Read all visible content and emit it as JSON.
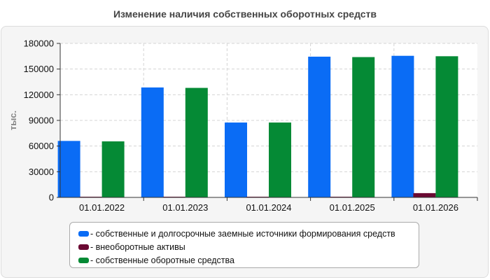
{
  "chart_data": {
    "type": "bar",
    "title": "Изменение наличия собственных оборотных средств",
    "ylabel": "тыс.",
    "xlabel": "",
    "categories": [
      "01.01.2022",
      "01.01.2023",
      "01.01.2024",
      "01.01.2025",
      "01.01.2026"
    ],
    "ylim": [
      0,
      180000
    ],
    "yticks": [
      0,
      30000,
      60000,
      90000,
      120000,
      150000,
      180000
    ],
    "grid": true,
    "legend_position": "bottom",
    "series": [
      {
        "name": "- собственные и долгосрочные заемные источники формирования средств",
        "color": "#0a6cf5",
        "values": [
          66000,
          128500,
          87500,
          164500,
          165500
        ]
      },
      {
        "name": "- внеоборотные активы",
        "color": "#6b0a33",
        "values": [
          800,
          800,
          800,
          800,
          5000
        ]
      },
      {
        "name": "- собственные оборотные средства",
        "color": "#058a35",
        "values": [
          65500,
          128000,
          87500,
          164000,
          165000
        ]
      }
    ]
  }
}
